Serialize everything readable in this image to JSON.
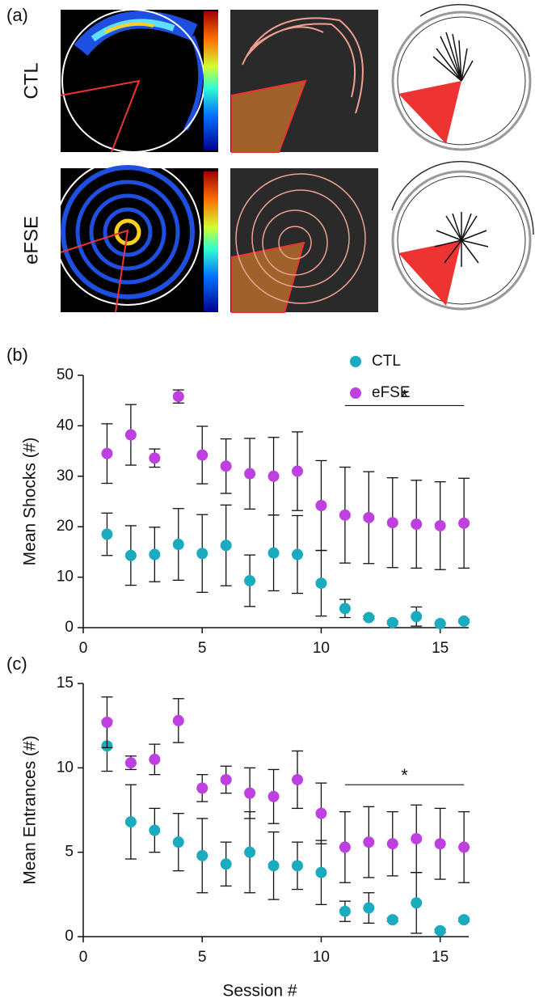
{
  "panel_a": {
    "label": "(a)",
    "rows": [
      "CTL",
      "eFSE"
    ]
  },
  "chart_data": [
    {
      "type": "scatter",
      "panel_label": "(b)",
      "y_label": "Mean Shocks (#)",
      "x": [
        1,
        2,
        3,
        4,
        5,
        6,
        7,
        8,
        9,
        10,
        11,
        12,
        13,
        14,
        15,
        16
      ],
      "xlim": [
        0,
        16.2
      ],
      "xticks": [
        0,
        5,
        10,
        15
      ],
      "ylim": [
        0,
        50
      ],
      "yticks": [
        0,
        10,
        20,
        30,
        40,
        50
      ],
      "legend": "top-right",
      "series": [
        {
          "name": "CTL",
          "color": "#1aabbf",
          "values": [
            18.5,
            14.3,
            14.5,
            16.5,
            14.7,
            16.3,
            9.3,
            14.8,
            14.5,
            8.8,
            3.8,
            2.0,
            1.0,
            2.2,
            0.8,
            1.3
          ],
          "errors": [
            4.2,
            5.9,
            5.4,
            7.1,
            7.7,
            8.0,
            5.1,
            7.5,
            7.7,
            6.5,
            1.8,
            0.3,
            0.3,
            1.9,
            0.2,
            0.3
          ]
        },
        {
          "name": "eFSE",
          "color": "#bf40e0",
          "values": [
            34.5,
            38.2,
            33.6,
            45.8,
            34.2,
            32.0,
            30.5,
            30.0,
            31.0,
            24.2,
            22.3,
            21.8,
            20.8,
            20.5,
            20.2,
            20.7
          ],
          "errors": [
            5.9,
            6.0,
            1.8,
            1.3,
            5.7,
            5.4,
            7.0,
            7.7,
            7.8,
            8.9,
            9.5,
            9.1,
            8.9,
            8.7,
            8.7,
            8.9
          ]
        }
      ],
      "annotations": [
        {
          "text": "*",
          "x": [
            11,
            16
          ],
          "y": 44
        }
      ]
    },
    {
      "type": "scatter",
      "panel_label": "(c)",
      "y_label": "Mean Entrances (#)",
      "x_label": "Session #",
      "x": [
        1,
        2,
        3,
        4,
        5,
        6,
        7,
        8,
        9,
        10,
        11,
        12,
        13,
        14,
        15,
        16
      ],
      "xlim": [
        0,
        16.2
      ],
      "xticks": [
        0,
        5,
        10,
        15
      ],
      "ylim": [
        0,
        15
      ],
      "yticks": [
        0,
        5,
        10,
        15
      ],
      "series": [
        {
          "color": "#1aabbf",
          "values": [
            11.3,
            6.8,
            6.3,
            5.6,
            4.8,
            4.3,
            5.0,
            4.2,
            4.2,
            3.8,
            1.5,
            1.7,
            1.0,
            2.0,
            0.35,
            1.0
          ],
          "errors": [
            1.5,
            2.2,
            1.3,
            1.7,
            2.2,
            1.3,
            2.4,
            2.0,
            1.4,
            1.9,
            0.6,
            0.9,
            0.1,
            1.8,
            0.1,
            0.1
          ]
        },
        {
          "color": "#bf40e0",
          "values": [
            12.7,
            10.3,
            10.5,
            12.8,
            8.8,
            9.3,
            8.5,
            8.3,
            9.3,
            7.3,
            5.3,
            5.6,
            5.5,
            5.8,
            5.5,
            5.3
          ],
          "errors": [
            1.5,
            0.4,
            0.9,
            1.3,
            0.8,
            0.8,
            1.5,
            1.6,
            1.7,
            1.8,
            2.1,
            2.1,
            1.9,
            2.0,
            2.1,
            2.1
          ]
        }
      ],
      "annotations": [
        {
          "text": "*",
          "x": [
            11,
            16
          ],
          "y": 9.0
        }
      ]
    }
  ]
}
